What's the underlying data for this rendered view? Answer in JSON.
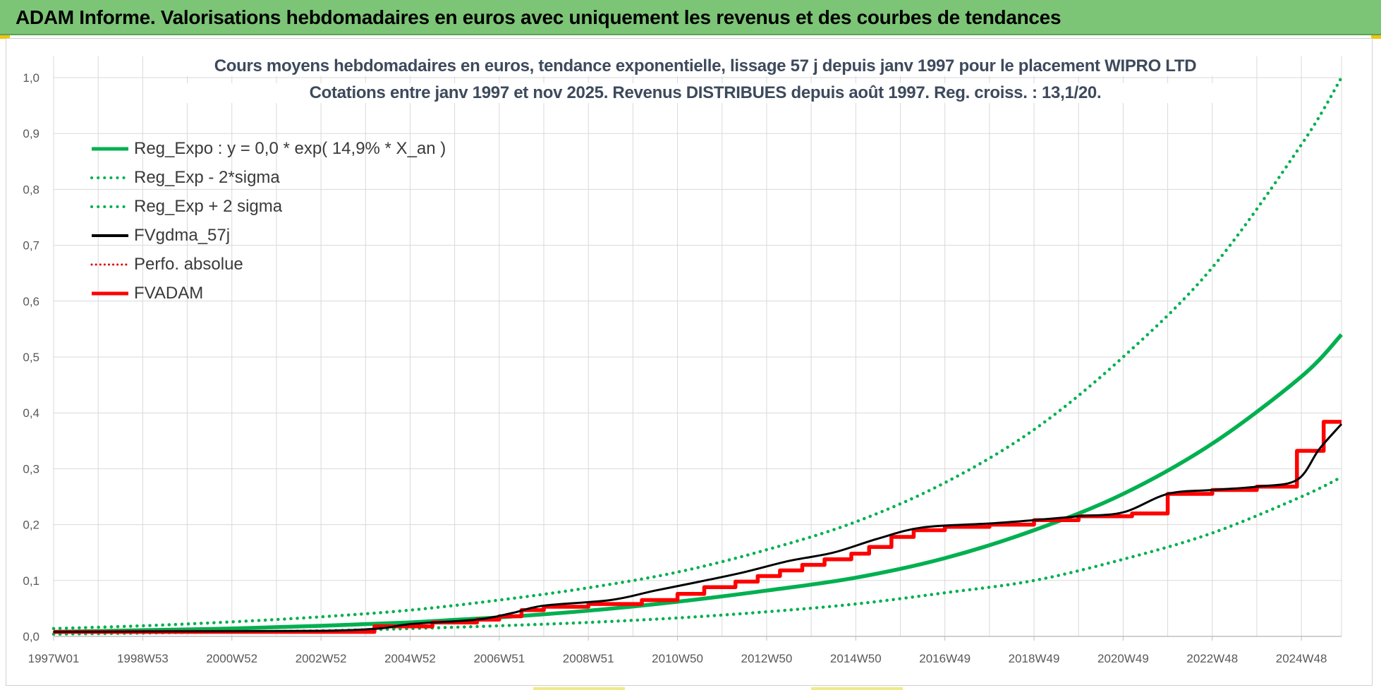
{
  "header": {
    "title": "ADAM Informe. Valorisations hebdomadaires en euros avec uniquement les revenus et des courbes de tendances"
  },
  "colors": {
    "header_bg": "#7cc576",
    "reg_expo": "#00b050",
    "sigma_bands": "#00b050",
    "fvgdma": "#000000",
    "perfo": "#e00000",
    "fvadam": "#ff0000",
    "grid": "#d9d9d9"
  },
  "chart_data": {
    "type": "line",
    "title": [
      "Cours moyens hebdomadaires en euros, tendance exponentielle, lissage 57 j depuis janv 1997 pour le placement WIPRO LTD",
      "Cotations entre janv 1997 et nov 2025. Revenus DISTRIBUES depuis août 1997. Reg. croiss. : 13,1/20."
    ],
    "xlabel": "",
    "ylabel": "",
    "ylim": [
      0,
      1.0
    ],
    "y_ticks": [
      "0,0",
      "0,1",
      "0,2",
      "0,3",
      "0,4",
      "0,5",
      "0,6",
      "0,7",
      "0,8",
      "0,9",
      "1,0"
    ],
    "x_ticks": [
      {
        "label": "1997W01",
        "year": 1997.0
      },
      {
        "label": "1998W53",
        "year": 1999.0
      },
      {
        "label": "2000W52",
        "year": 2001.0
      },
      {
        "label": "2002W52",
        "year": 2003.0
      },
      {
        "label": "2004W52",
        "year": 2005.0
      },
      {
        "label": "2006W51",
        "year": 2007.0
      },
      {
        "label": "2008W51",
        "year": 2009.0
      },
      {
        "label": "2010W50",
        "year": 2011.0
      },
      {
        "label": "2012W50",
        "year": 2013.0
      },
      {
        "label": "2014W50",
        "year": 2015.0
      },
      {
        "label": "2016W49",
        "year": 2017.0
      },
      {
        "label": "2018W49",
        "year": 2019.0
      },
      {
        "label": "2020W49",
        "year": 2021.0
      },
      {
        "label": "2022W48",
        "year": 2023.0
      },
      {
        "label": "2024W48",
        "year": 2025.0
      }
    ],
    "x_range": [
      1997.0,
      2025.9
    ],
    "grid": true,
    "legend_position": "top-left",
    "series": [
      {
        "name": "Reg_Expo : y = 0,0 * exp( 14,9% *  X_an )",
        "style": "solid-thick",
        "x": [
          1997,
          1999,
          2001,
          2003,
          2005,
          2007,
          2009,
          2011,
          2013,
          2015,
          2017,
          2019,
          2021,
          2023,
          2025,
          2025.9
        ],
        "y": [
          0.008,
          0.011,
          0.014,
          0.019,
          0.025,
          0.034,
          0.046,
          0.062,
          0.082,
          0.105,
          0.14,
          0.19,
          0.255,
          0.345,
          0.465,
          0.54
        ]
      },
      {
        "name": "Reg_Exp - 2*sigma",
        "style": "dotted",
        "x": [
          1997,
          1999,
          2001,
          2003,
          2005,
          2007,
          2009,
          2011,
          2013,
          2015,
          2017,
          2019,
          2021,
          2023,
          2025,
          2025.9
        ],
        "y": [
          0.004,
          0.006,
          0.008,
          0.01,
          0.014,
          0.019,
          0.025,
          0.033,
          0.044,
          0.058,
          0.078,
          0.1,
          0.138,
          0.185,
          0.25,
          0.285
        ]
      },
      {
        "name": "Reg_Exp + 2 sigma",
        "style": "dotted",
        "x": [
          1997,
          1999,
          2001,
          2003,
          2005,
          2007,
          2009,
          2011,
          2013,
          2015,
          2017,
          2019,
          2021,
          2023,
          2025,
          2025.9
        ],
        "y": [
          0.014,
          0.019,
          0.026,
          0.035,
          0.047,
          0.065,
          0.087,
          0.115,
          0.155,
          0.205,
          0.275,
          0.37,
          0.5,
          0.66,
          0.88,
          1.0
        ]
      },
      {
        "name": "FVgdma_57j",
        "style": "solid",
        "x": [
          1997,
          2000,
          2003,
          2004.3,
          2005,
          2006.5,
          2007.3,
          2008,
          2009.5,
          2010.5,
          2011.5,
          2012.5,
          2013.5,
          2014.5,
          2015.5,
          2016.5,
          2018,
          2019,
          2020,
          2021,
          2022,
          2023,
          2024,
          2024.9,
          2025.4,
          2025.9
        ],
        "y": [
          0.008,
          0.009,
          0.01,
          0.014,
          0.022,
          0.03,
          0.042,
          0.055,
          0.065,
          0.082,
          0.098,
          0.115,
          0.135,
          0.15,
          0.175,
          0.195,
          0.202,
          0.208,
          0.215,
          0.222,
          0.255,
          0.262,
          0.268,
          0.28,
          0.335,
          0.38
        ]
      },
      {
        "name": "Perfo. absolue",
        "style": "dotted-red",
        "x": [
          1997,
          2000,
          2003,
          2004.3,
          2005,
          2006.5,
          2007.3,
          2008,
          2009.5,
          2010.5,
          2011.5,
          2012.5,
          2013.5,
          2014.5,
          2015.5,
          2016.5,
          2018,
          2019,
          2020,
          2021,
          2022,
          2023,
          2024,
          2024.9,
          2025.4,
          2025.9
        ],
        "y": [
          0.008,
          0.009,
          0.01,
          0.014,
          0.022,
          0.03,
          0.042,
          0.055,
          0.065,
          0.082,
          0.098,
          0.115,
          0.135,
          0.15,
          0.175,
          0.195,
          0.202,
          0.208,
          0.215,
          0.222,
          0.255,
          0.262,
          0.268,
          0.28,
          0.335,
          0.38
        ]
      },
      {
        "name": "FVADAM",
        "style": "step-thick",
        "x": [
          1997,
          2004.2,
          2005.5,
          2006.5,
          2007.0,
          2007.5,
          2008.0,
          2009.0,
          2010.2,
          2011.0,
          2011.6,
          2012.3,
          2012.8,
          2013.3,
          2013.8,
          2014.3,
          2014.9,
          2015.3,
          2015.8,
          2016.3,
          2017.0,
          2018.0,
          2019.0,
          2020.0,
          2021.2,
          2022.0,
          2023.0,
          2024.0,
          2024.9,
          2025.5,
          2025.9
        ],
        "y": [
          0.008,
          0.018,
          0.025,
          0.03,
          0.036,
          0.047,
          0.053,
          0.058,
          0.065,
          0.076,
          0.088,
          0.098,
          0.108,
          0.118,
          0.128,
          0.138,
          0.148,
          0.16,
          0.178,
          0.19,
          0.196,
          0.2,
          0.208,
          0.215,
          0.22,
          0.255,
          0.262,
          0.268,
          0.332,
          0.384,
          0.384
        ]
      }
    ]
  }
}
